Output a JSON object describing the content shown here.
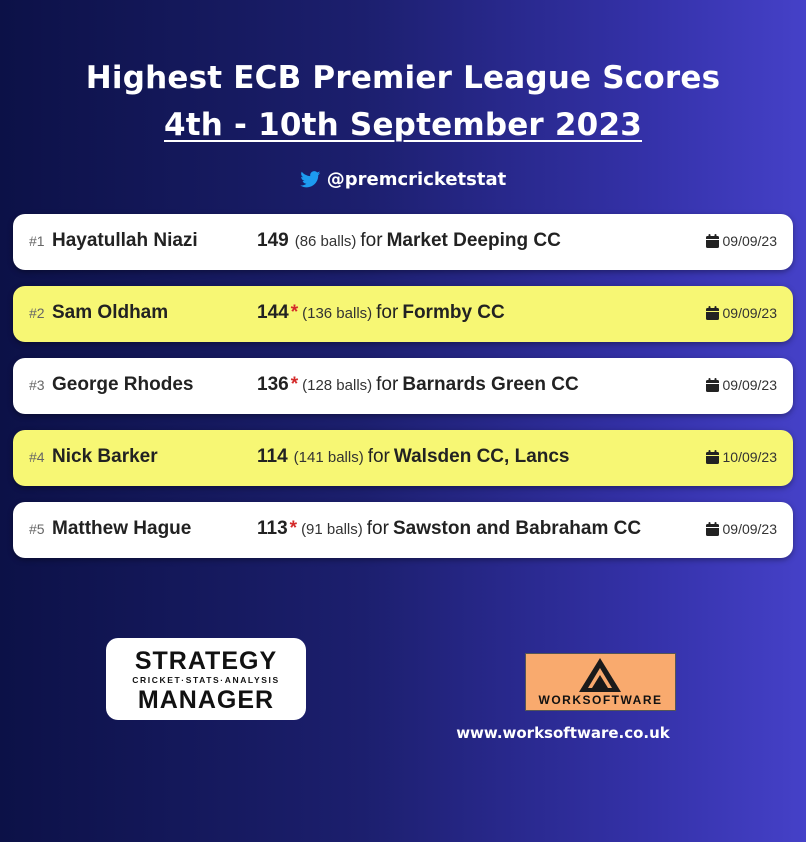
{
  "header": {
    "title_line1": "Highest ECB Premier League Scores",
    "title_line2": "4th - 10th September 2023",
    "twitter_handle": "@premcricketstat"
  },
  "colors": {
    "row_white": "#ffffff",
    "row_yellow": "#f7f774",
    "not_out_star": "#d42a2a",
    "twitter_blue": "#1d9bf0",
    "worksoftware_orange": "#f9aa6e"
  },
  "scores": [
    {
      "rank": "#1",
      "name": "Hayatullah Niazi",
      "runs": "149",
      "not_out": "",
      "balls": "(86 balls)",
      "for": "for",
      "team": "Market Deeping CC",
      "date": "09/09/23"
    },
    {
      "rank": "#2",
      "name": "Sam Oldham",
      "runs": "144",
      "not_out": "*",
      "balls": "(136 balls)",
      "for": "for",
      "team": "Formby CC",
      "date": "09/09/23"
    },
    {
      "rank": "#3",
      "name": "George Rhodes",
      "runs": "136",
      "not_out": "*",
      "balls": "(128 balls)",
      "for": "for",
      "team": "Barnards Green CC",
      "date": "09/09/23"
    },
    {
      "rank": "#4",
      "name": "Nick Barker",
      "runs": "114",
      "not_out": "",
      "balls": "(141 balls)",
      "for": "for",
      "team": "Walsden CC, Lancs",
      "date": "10/09/23"
    },
    {
      "rank": "#5",
      "name": "Matthew Hague",
      "runs": "113",
      "not_out": "*",
      "balls": "(91 balls)",
      "for": "for",
      "team": "Sawston and Babraham CC",
      "date": "09/09/23"
    }
  ],
  "footer": {
    "strategy_logo_top": "STRATEGY",
    "strategy_logo_tagline": "CRICKET·STATS·ANALYSIS",
    "strategy_logo_bottom": "MANAGER",
    "worksoftware_logo_text": "WORKSOFTWARE",
    "website": "www.worksoftware.co.uk"
  }
}
